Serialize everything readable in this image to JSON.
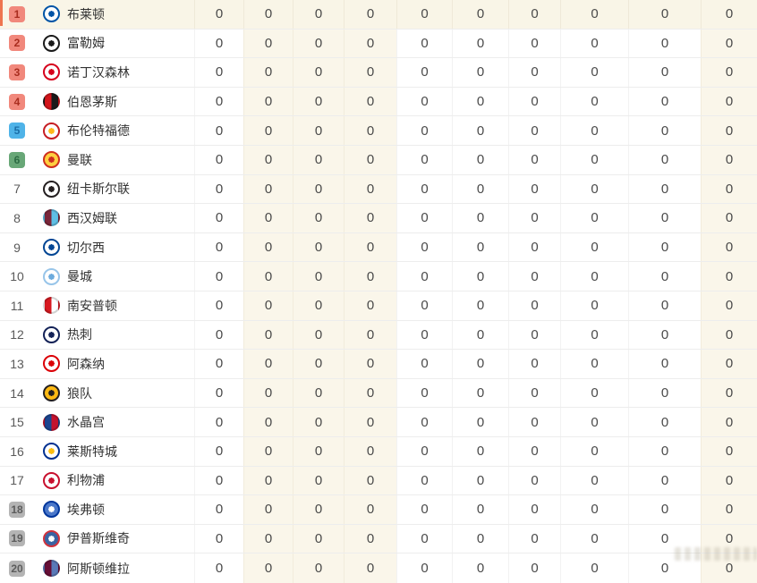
{
  "theme": {
    "zone_red_bg": "#f1887c",
    "zone_red_text": "#a92d1f",
    "zone_blue_bg": "#4fb3e8",
    "zone_blue_text": "#1b6ea8",
    "zone_green_bg": "#68a777",
    "zone_green_text": "#2c6b43",
    "zone_gray_bg": "#b4b4b4",
    "zone_gray_text": "#5c5c5c",
    "stripe": "#faf6ea",
    "highlight": "#f9f5e7",
    "accent_bar": "#ee7550"
  },
  "table": {
    "highlighted_rank": 1,
    "rows": [
      {
        "rank": 1,
        "zone": "red",
        "team": "布莱顿",
        "logo": {
          "type": "ring",
          "colors": [
            "#0054a6",
            "#ffffff",
            "#0054a6"
          ]
        },
        "values": [
          0,
          0,
          0,
          0,
          0,
          0,
          0,
          0,
          0,
          0
        ]
      },
      {
        "rank": 2,
        "zone": "red",
        "team": "富勒姆",
        "logo": {
          "type": "ring",
          "colors": [
            "#1a1a1a",
            "#ffffff",
            "#1a1a1a"
          ]
        },
        "values": [
          0,
          0,
          0,
          0,
          0,
          0,
          0,
          0,
          0,
          0
        ]
      },
      {
        "rank": 3,
        "zone": "red",
        "team": "诺丁汉森林",
        "logo": {
          "type": "ring",
          "colors": [
            "#d6001c",
            "#ffffff",
            "#d6001c"
          ]
        },
        "values": [
          0,
          0,
          0,
          0,
          0,
          0,
          0,
          0,
          0,
          0
        ]
      },
      {
        "rank": 4,
        "zone": "red",
        "team": "伯恩茅斯",
        "logo": {
          "type": "split",
          "colors": [
            "#d3151b",
            "#1a1a1a"
          ]
        },
        "values": [
          0,
          0,
          0,
          0,
          0,
          0,
          0,
          0,
          0,
          0
        ]
      },
      {
        "rank": 5,
        "zone": "blue",
        "team": "布伦特福德",
        "logo": {
          "type": "ring",
          "colors": [
            "#c61d23",
            "#ffffff",
            "#ffb81c"
          ]
        },
        "values": [
          0,
          0,
          0,
          0,
          0,
          0,
          0,
          0,
          0,
          0
        ]
      },
      {
        "rank": 6,
        "zone": "green",
        "team": "曼联",
        "logo": {
          "type": "ring",
          "colors": [
            "#cf2e1d",
            "#ffcf3f",
            "#cf2e1d"
          ]
        },
        "values": [
          0,
          0,
          0,
          0,
          0,
          0,
          0,
          0,
          0,
          0
        ]
      },
      {
        "rank": 7,
        "zone": "none",
        "team": "纽卡斯尔联",
        "logo": {
          "type": "ring",
          "colors": [
            "#241f20",
            "#ffffff",
            "#241f20"
          ]
        },
        "values": [
          0,
          0,
          0,
          0,
          0,
          0,
          0,
          0,
          0,
          0
        ]
      },
      {
        "rank": 8,
        "zone": "none",
        "team": "西汉姆联",
        "logo": {
          "type": "split",
          "colors": [
            "#7a263a",
            "#5fbfe5"
          ]
        },
        "values": [
          0,
          0,
          0,
          0,
          0,
          0,
          0,
          0,
          0,
          0
        ]
      },
      {
        "rank": 9,
        "zone": "none",
        "team": "切尔西",
        "logo": {
          "type": "ring",
          "colors": [
            "#034694",
            "#ffffff",
            "#034694"
          ]
        },
        "values": [
          0,
          0,
          0,
          0,
          0,
          0,
          0,
          0,
          0,
          0
        ]
      },
      {
        "rank": 10,
        "zone": "none",
        "team": "曼城",
        "logo": {
          "type": "ring",
          "colors": [
            "#98c5e9",
            "#ffffff",
            "#6cabdd"
          ]
        },
        "values": [
          0,
          0,
          0,
          0,
          0,
          0,
          0,
          0,
          0,
          0
        ]
      },
      {
        "rank": 11,
        "zone": "none",
        "team": "南安普顿",
        "logo": {
          "type": "split",
          "colors": [
            "#d71920",
            "#ffffff"
          ]
        },
        "values": [
          0,
          0,
          0,
          0,
          0,
          0,
          0,
          0,
          0,
          0
        ]
      },
      {
        "rank": 12,
        "zone": "none",
        "team": "热刺",
        "logo": {
          "type": "ring",
          "colors": [
            "#132257",
            "#ffffff",
            "#132257"
          ]
        },
        "values": [
          0,
          0,
          0,
          0,
          0,
          0,
          0,
          0,
          0,
          0
        ]
      },
      {
        "rank": 13,
        "zone": "none",
        "team": "阿森纳",
        "logo": {
          "type": "ring",
          "colors": [
            "#db0007",
            "#ffffff",
            "#db0007"
          ]
        },
        "values": [
          0,
          0,
          0,
          0,
          0,
          0,
          0,
          0,
          0,
          0
        ]
      },
      {
        "rank": 14,
        "zone": "none",
        "team": "狼队",
        "logo": {
          "type": "ring",
          "colors": [
            "#231f20",
            "#fdb913",
            "#231f20"
          ]
        },
        "values": [
          0,
          0,
          0,
          0,
          0,
          0,
          0,
          0,
          0,
          0
        ]
      },
      {
        "rank": 15,
        "zone": "none",
        "team": "水晶宫",
        "logo": {
          "type": "split",
          "colors": [
            "#1b458f",
            "#c4122e"
          ]
        },
        "values": [
          0,
          0,
          0,
          0,
          0,
          0,
          0,
          0,
          0,
          0
        ]
      },
      {
        "rank": 16,
        "zone": "none",
        "team": "莱斯特城",
        "logo": {
          "type": "ring",
          "colors": [
            "#003090",
            "#ffffff",
            "#fdbe11"
          ]
        },
        "values": [
          0,
          0,
          0,
          0,
          0,
          0,
          0,
          0,
          0,
          0
        ]
      },
      {
        "rank": 17,
        "zone": "none",
        "team": "利物浦",
        "logo": {
          "type": "ring",
          "colors": [
            "#c8102e",
            "#ffffff",
            "#c8102e"
          ]
        },
        "values": [
          0,
          0,
          0,
          0,
          0,
          0,
          0,
          0,
          0,
          0
        ]
      },
      {
        "rank": 18,
        "zone": "gray",
        "team": "埃弗顿",
        "logo": {
          "type": "ring",
          "colors": [
            "#00369c",
            "#4a77c9",
            "#ffffff"
          ]
        },
        "values": [
          0,
          0,
          0,
          0,
          0,
          0,
          0,
          0,
          0,
          0
        ]
      },
      {
        "rank": 19,
        "zone": "gray",
        "team": "伊普斯维奇",
        "logo": {
          "type": "ring",
          "colors": [
            "#d0323c",
            "#3a64a3",
            "#ffffff"
          ]
        },
        "values": [
          0,
          0,
          0,
          0,
          0,
          0,
          0,
          0,
          0,
          0
        ]
      },
      {
        "rank": 20,
        "zone": "gray",
        "team": "阿斯顿维拉",
        "logo": {
          "type": "split",
          "colors": [
            "#670e36",
            "#5a79b8"
          ]
        },
        "values": [
          0,
          0,
          0,
          0,
          0,
          0,
          0,
          0,
          0,
          0
        ]
      }
    ]
  }
}
